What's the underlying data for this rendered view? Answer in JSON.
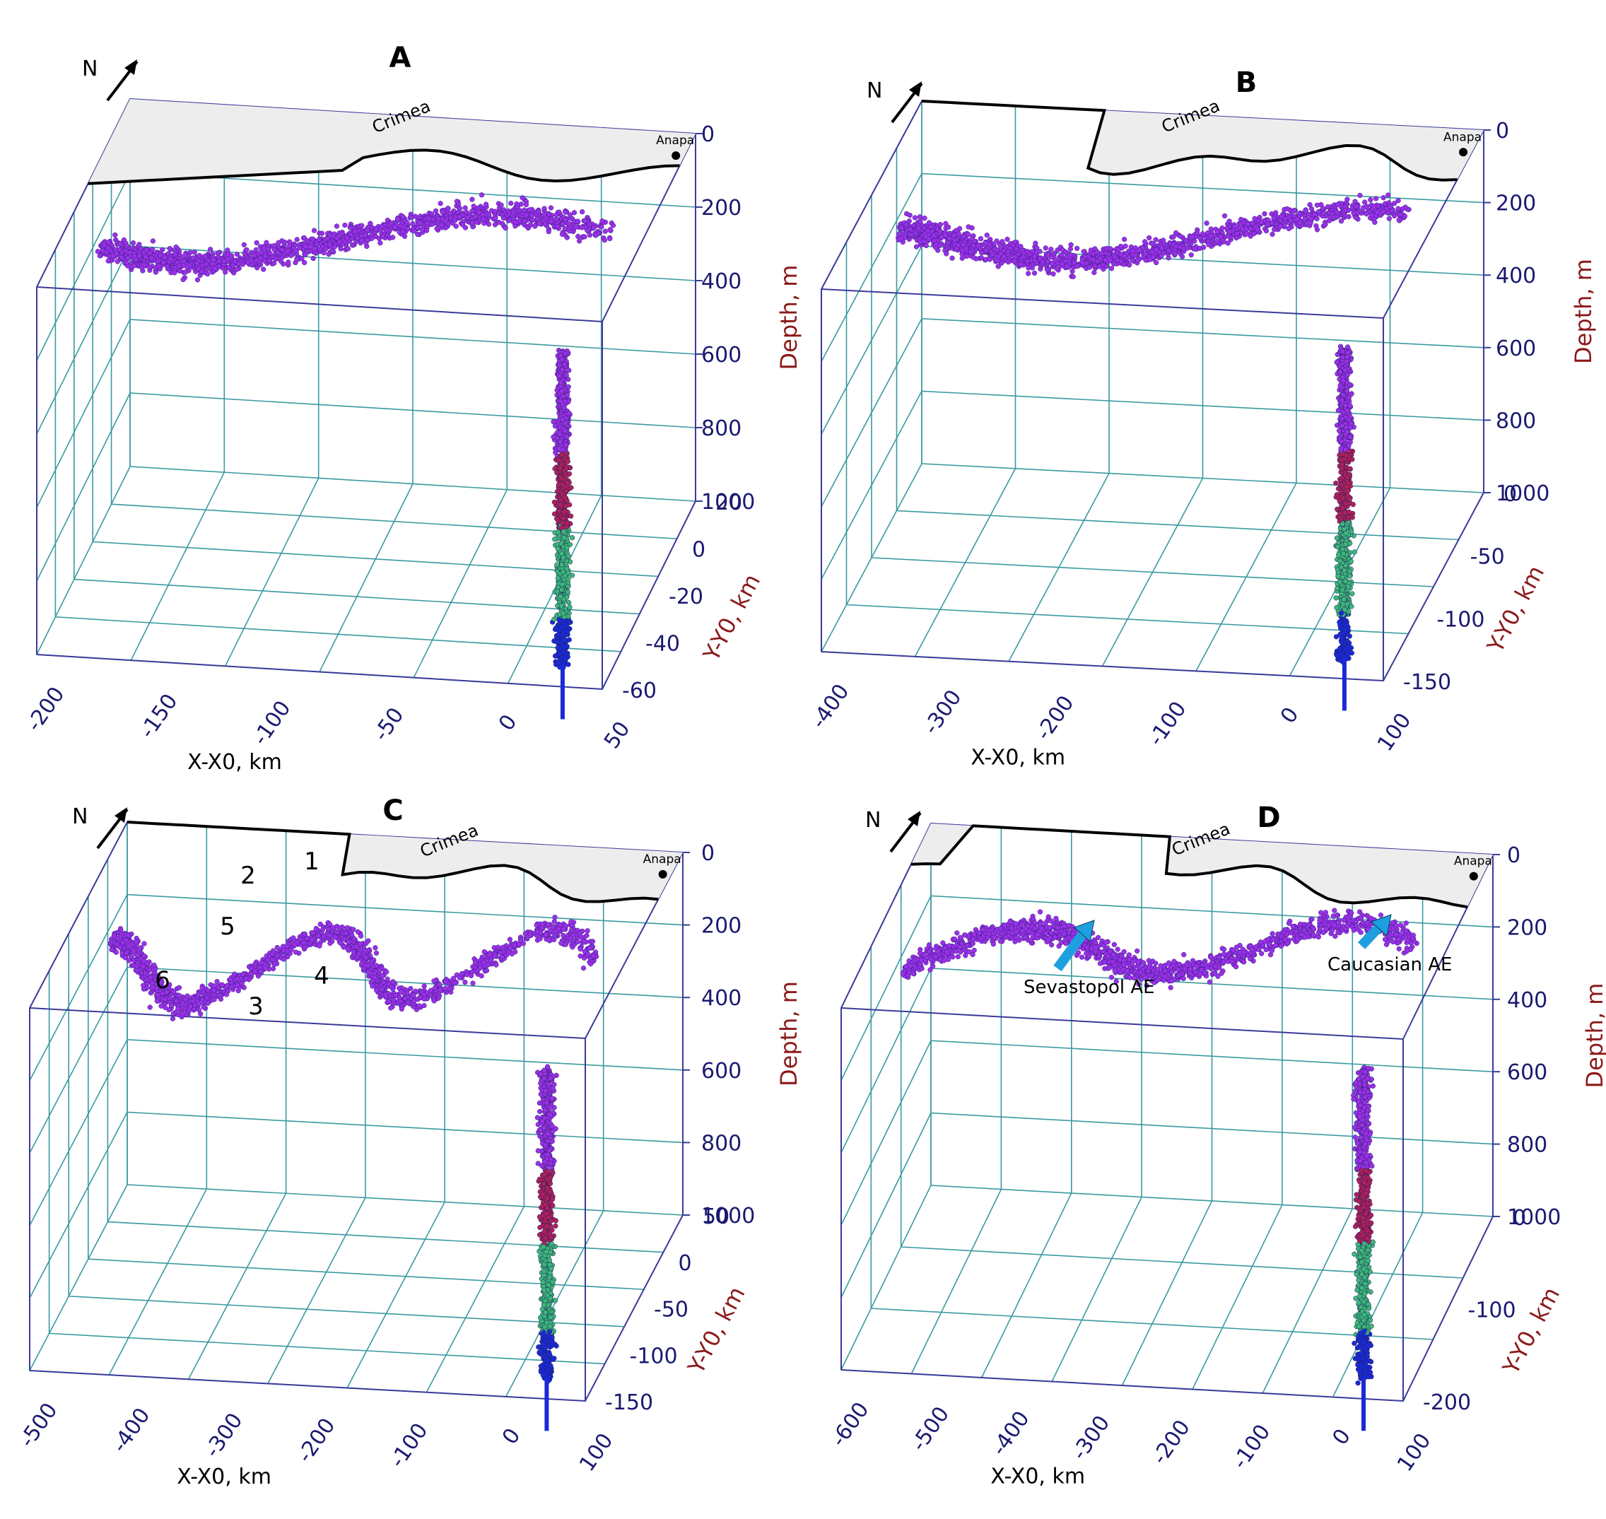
{
  "figure": {
    "panels": [
      {
        "id": "A",
        "title": "A",
        "north_label": "N",
        "land_labels": [
          "Crimea"
        ],
        "city_label": "Anapa",
        "depth_axis": {
          "label": "Depth, m",
          "ticks": [
            "0",
            "200",
            "400",
            "600",
            "800",
            "1000"
          ]
        },
        "y_axis": {
          "label": "Y-Y0, km",
          "ticks": [
            "20",
            "0",
            "-20",
            "-40",
            "-60"
          ]
        },
        "x_axis": {
          "label": "X-X0, km",
          "ticks": [
            "-200",
            "-150",
            "-100",
            "-50",
            "0",
            "50"
          ]
        },
        "annotations": []
      },
      {
        "id": "B",
        "title": "B",
        "north_label": "N",
        "land_labels": [
          "Crimea"
        ],
        "city_label": "Anapa",
        "depth_axis": {
          "label": "Depth, m",
          "ticks": [
            "0",
            "200",
            "400",
            "600",
            "800",
            "1000"
          ]
        },
        "y_axis": {
          "label": "Y-Y0, km",
          "ticks": [
            "0",
            "-50",
            "-100",
            "-150"
          ]
        },
        "x_axis": {
          "label": "X-X0, km",
          "ticks": [
            "-400",
            "-300",
            "-200",
            "-100",
            "0",
            "100"
          ]
        },
        "annotations": []
      },
      {
        "id": "C",
        "title": "C",
        "north_label": "N",
        "land_labels": [
          "Crimea"
        ],
        "city_label": "Anapa",
        "depth_axis": {
          "label": "Depth, m",
          "ticks": [
            "0",
            "200",
            "400",
            "600",
            "800",
            "1000"
          ]
        },
        "y_axis": {
          "label": "Y-Y0, km",
          "ticks": [
            "50",
            "0",
            "-50",
            "-100",
            "-150"
          ]
        },
        "x_axis": {
          "label": "X-X0, km",
          "ticks": [
            "-500",
            "-400",
            "-300",
            "-200",
            "-100",
            "0",
            "100"
          ]
        },
        "annotations": [
          "1",
          "2",
          "3",
          "4",
          "5",
          "6"
        ]
      },
      {
        "id": "D",
        "title": "D",
        "north_label": "N",
        "land_labels": [
          "Crimea"
        ],
        "city_label": "Anapa",
        "depth_axis": {
          "label": "Depth, m",
          "ticks": [
            "0",
            "200",
            "400",
            "600",
            "800",
            "1000"
          ]
        },
        "y_axis": {
          "label": "Y-Y0, km",
          "ticks": [
            "0",
            "-100",
            "-200"
          ]
        },
        "x_axis": {
          "label": "X-X0, km",
          "ticks": [
            "-600",
            "-500",
            "-400",
            "-300",
            "-200",
            "-100",
            "0",
            "100"
          ]
        },
        "annotations": [
          "Sevastopol AE",
          "Caucasian AE"
        ]
      }
    ]
  },
  "chart_data": [
    {
      "type": "scatter",
      "panel": "A",
      "zlabel": "Depth, m",
      "ylabel": "Y-Y0, km",
      "xlabel": "X-X0, km",
      "zlim": [
        0,
        1000
      ],
      "ylim": [
        -60,
        20
      ],
      "xlim": [
        -200,
        50
      ],
      "depth_color_bands": [
        {
          "range": [
            0,
            400
          ],
          "color": "#9b30e8"
        },
        {
          "range": [
            400,
            600
          ],
          "color": "#b0205a"
        },
        {
          "range": [
            600,
            850
          ],
          "color": "#3cb878"
        },
        {
          "range": [
            850,
            1000
          ],
          "color": "#1a2ad8"
        }
      ]
    },
    {
      "type": "scatter",
      "panel": "B",
      "zlabel": "Depth, m",
      "ylabel": "Y-Y0, km",
      "xlabel": "X-X0, km",
      "zlim": [
        0,
        1000
      ],
      "ylim": [
        -150,
        0
      ],
      "xlim": [
        -400,
        100
      ],
      "depth_color_bands": [
        {
          "range": [
            0,
            400
          ],
          "color": "#9b30e8"
        },
        {
          "range": [
            400,
            600
          ],
          "color": "#b0205a"
        },
        {
          "range": [
            600,
            850
          ],
          "color": "#3cb878"
        },
        {
          "range": [
            850,
            1000
          ],
          "color": "#1a2ad8"
        }
      ]
    },
    {
      "type": "scatter",
      "panel": "C",
      "zlabel": "Depth, m",
      "ylabel": "Y-Y0, km",
      "xlabel": "X-X0, km",
      "zlim": [
        0,
        1000
      ],
      "ylim": [
        -150,
        50
      ],
      "xlim": [
        -500,
        100
      ],
      "depth_color_bands": [
        {
          "range": [
            0,
            400
          ],
          "color": "#9b30e8"
        },
        {
          "range": [
            400,
            600
          ],
          "color": "#b0205a"
        },
        {
          "range": [
            600,
            850
          ],
          "color": "#3cb878"
        },
        {
          "range": [
            850,
            1000
          ],
          "color": "#1a2ad8"
        }
      ]
    },
    {
      "type": "scatter",
      "panel": "D",
      "zlabel": "Depth, m",
      "ylabel": "Y-Y0, km",
      "xlabel": "X-X0, km",
      "zlim": [
        0,
        1000
      ],
      "ylim": [
        -200,
        0
      ],
      "xlim": [
        -600,
        100
      ],
      "depth_color_bands": [
        {
          "range": [
            0,
            400
          ],
          "color": "#9b30e8"
        },
        {
          "range": [
            400,
            600
          ],
          "color": "#b0205a"
        },
        {
          "range": [
            600,
            850
          ],
          "color": "#3cb878"
        },
        {
          "range": [
            850,
            1000
          ],
          "color": "#1a2ad8"
        }
      ]
    }
  ],
  "colors": {
    "grid": "#3a9aa0",
    "frame": "#3a3a9a",
    "tick_text": "#1a1a70",
    "axis_label": "#8b1a1a",
    "land": "#ededed",
    "coast": "#000000",
    "arrow": "#1ea0e0"
  }
}
